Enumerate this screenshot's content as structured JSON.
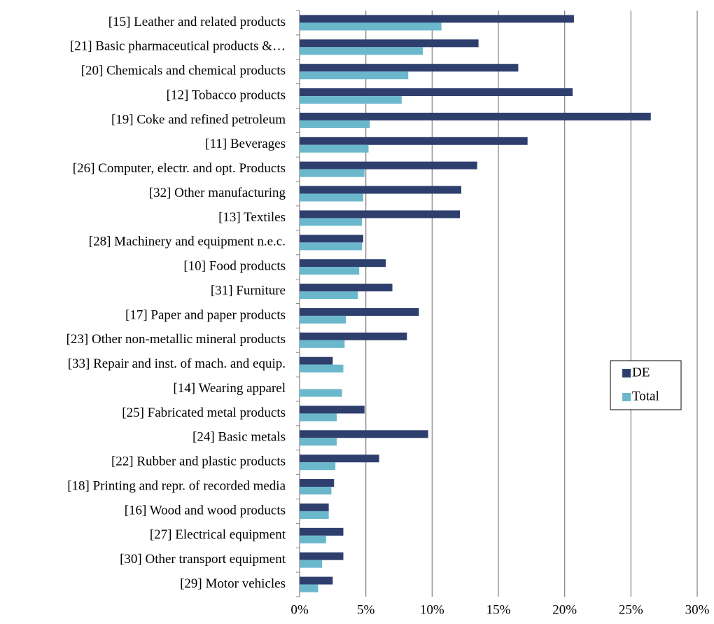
{
  "chart_data": {
    "type": "hbar",
    "categories": [
      "[15] Leather and related products",
      "[21] Basic pharmaceutical products &…",
      "[20] Chemicals and chemical products",
      "[12] Tobacco products",
      "[19] Coke and refined petroleum",
      "[11] Beverages",
      "[26] Computer, electr. and opt. Products",
      "[32] Other manufacturing",
      "[13] Textiles",
      "[28] Machinery and equipment n.e.c.",
      "[10] Food products",
      "[31] Furniture",
      "[17] Paper and paper products",
      "[23] Other non-metallic mineral products",
      "[33] Repair and inst. of mach. and equip.",
      "[14] Wearing apparel",
      "[25] Fabricated metal products",
      "[24] Basic metals",
      "[22] Rubber and plastic products",
      "[18] Printing and repr. of recorded media",
      "[16] Wood and wood products",
      "[27] Electrical equipment",
      "[30] Other transport equipment",
      "[29] Motor vehicles"
    ],
    "series": [
      {
        "name": "DE",
        "color": "#2e3f6e",
        "values": [
          20.7,
          13.5,
          16.5,
          20.6,
          26.5,
          17.2,
          13.4,
          12.2,
          12.1,
          4.8,
          6.5,
          7.0,
          9.0,
          8.1,
          2.5,
          null,
          4.9,
          9.7,
          6.0,
          2.6,
          2.2,
          3.3,
          3.3,
          2.5
        ]
      },
      {
        "name": "Total",
        "color": "#6bb8cc",
        "values": [
          10.7,
          9.3,
          8.2,
          7.7,
          5.3,
          5.2,
          4.9,
          4.8,
          4.7,
          4.7,
          4.5,
          4.4,
          3.5,
          3.4,
          3.3,
          3.2,
          2.8,
          2.8,
          2.7,
          2.4,
          2.2,
          2.0,
          1.7,
          1.4
        ]
      }
    ],
    "xlim": [
      0,
      30
    ],
    "xticks": [
      {
        "value": 0,
        "label": "0%"
      },
      {
        "value": 5,
        "label": "5%"
      },
      {
        "value": 10,
        "label": "10%"
      },
      {
        "value": 15,
        "label": "15%"
      },
      {
        "value": 20,
        "label": "20%"
      },
      {
        "value": 25,
        "label": "25%"
      },
      {
        "value": 30,
        "label": "30%"
      }
    ],
    "grid": true,
    "legend": "right"
  }
}
